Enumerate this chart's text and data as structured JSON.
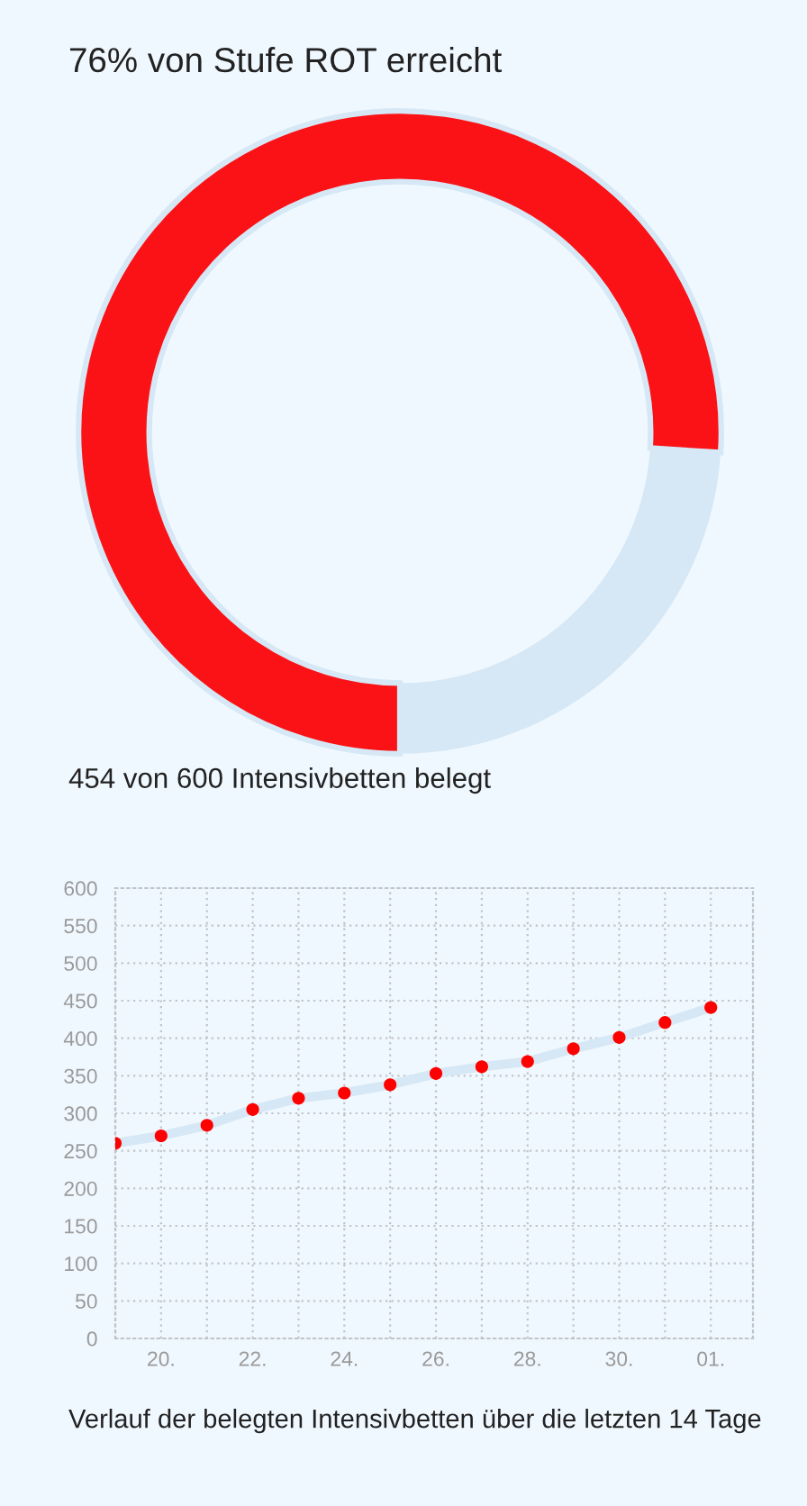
{
  "chart_data": [
    {
      "type": "donut",
      "title": "76% von Stufe ROT erreicht",
      "categories": [
        null,
        null
      ],
      "values": [
        76,
        24
      ],
      "colors": [
        "#fa1216",
        "#d6e8f5"
      ],
      "annotations": [
        "454 von 600 Intensivbetten belegt"
      ]
    },
    {
      "type": "line",
      "categories": [
        null,
        "20.",
        null,
        "22.",
        null,
        "24.",
        null,
        "26.",
        null,
        "28.",
        null,
        "30.",
        null,
        "01."
      ],
      "series": [
        {
          "type": "line",
          "color": "#d6e8f5",
          "values": [
            260,
            270,
            284,
            305,
            320,
            327,
            338,
            353,
            362,
            369,
            386,
            401,
            421,
            441
          ]
        },
        {
          "type": "scatter",
          "color": "#ff0000",
          "marker": "circle",
          "values": [
            260,
            270,
            284,
            305,
            320,
            327,
            338,
            353,
            362,
            369,
            386,
            401,
            421,
            441
          ]
        }
      ],
      "ylim": [
        0,
        600
      ],
      "yticks": [
        0,
        50,
        100,
        150,
        200,
        250,
        300,
        350,
        400,
        450,
        500,
        550,
        600
      ],
      "grid": true,
      "annotations": [
        "Verlauf der belegten Intensivbetten über die letzten 14 Tage"
      ]
    }
  ]
}
